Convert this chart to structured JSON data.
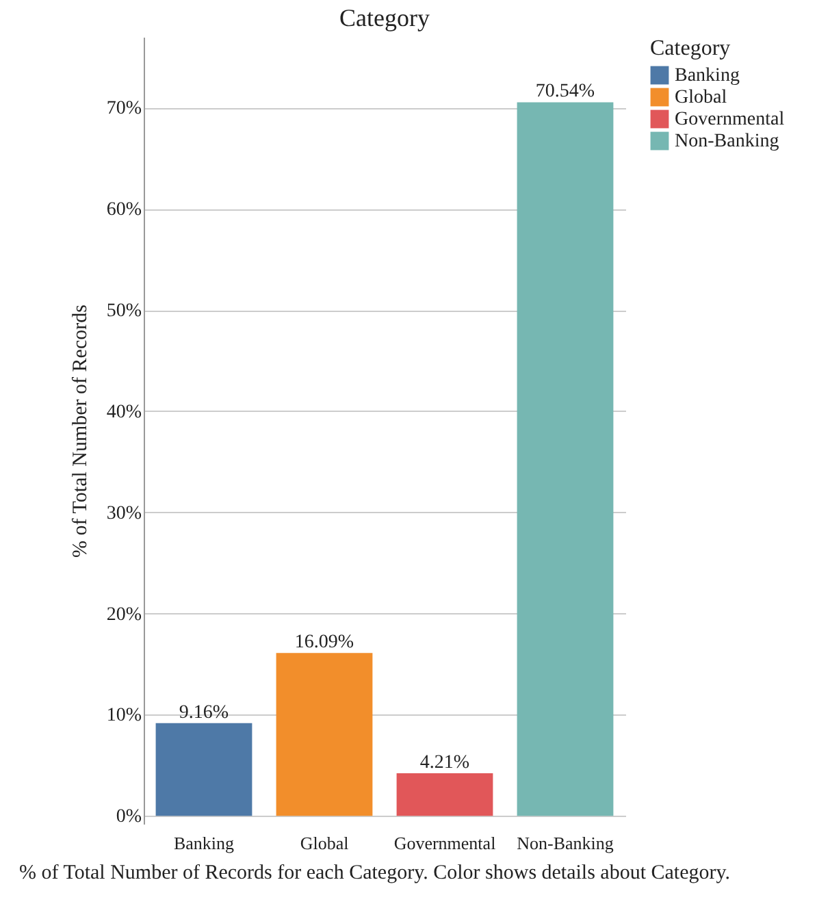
{
  "chart_data": {
    "type": "bar",
    "title": "Category",
    "ylabel": "% of Total Number of Records",
    "legend_title": "Category",
    "annotations": [
      "% of Total Number of Records for each Category. Color shows details about Category."
    ],
    "categories": [
      "Banking",
      "Global",
      "Governmental",
      "Non-Banking"
    ],
    "stacked": true,
    "series": [
      {
        "name": "Banking",
        "color": "#4e79a7",
        "values": [
          9.16,
          null,
          null,
          null
        ],
        "value_labels": [
          "9.16%",
          null,
          null,
          null
        ]
      },
      {
        "name": "Global",
        "color": "#f28e2b",
        "values": [
          null,
          16.09,
          null,
          null
        ],
        "value_labels": [
          null,
          "16.09%",
          null,
          null
        ]
      },
      {
        "name": "Governmental",
        "color": "#e15759",
        "values": [
          null,
          null,
          4.21,
          null
        ],
        "value_labels": [
          null,
          null,
          "4.21%",
          null
        ]
      },
      {
        "name": "Non-Banking",
        "color": "#76b7b2",
        "values": [
          null,
          null,
          null,
          70.54
        ],
        "value_labels": [
          null,
          null,
          null,
          "70.54%"
        ]
      }
    ],
    "ylim": [
      -0.8,
      77
    ],
    "yticks": [
      {
        "value": 0,
        "label": "0%"
      },
      {
        "value": 10,
        "label": "10%"
      },
      {
        "value": 20,
        "label": "20%"
      },
      {
        "value": 30,
        "label": "30%"
      },
      {
        "value": 40,
        "label": "40%"
      },
      {
        "value": 50,
        "label": "50%"
      },
      {
        "value": 60,
        "label": "60%"
      },
      {
        "value": 70,
        "label": "70%"
      }
    ],
    "grid": "y",
    "legend": "top right"
  }
}
